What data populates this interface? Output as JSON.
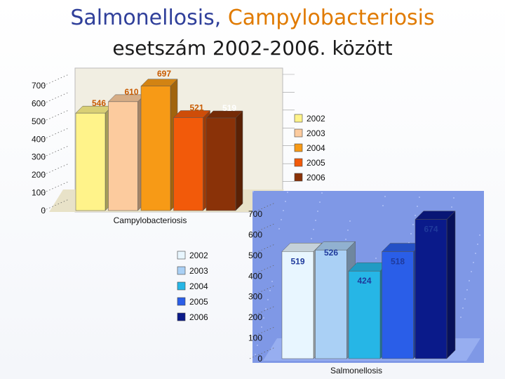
{
  "header": {
    "title_part1": "Salmonellosis",
    "title_sep": ", ",
    "title_part2": "Campylobacteriosis",
    "subtitle": "esetszám 2002-2006. között"
  },
  "colors": {
    "title_blue": "#2f3f9a",
    "title_orange": "#e07a00",
    "label_orange": "#c85a00",
    "label_blue": "#1f3a9c"
  },
  "chart_data": [
    {
      "type": "bar",
      "xlabel": "Campylobacteriosis",
      "categories": [
        "2002",
        "2003",
        "2004",
        "2005",
        "2006"
      ],
      "values": [
        546,
        610,
        697,
        521,
        519
      ],
      "ylim": [
        0,
        700
      ],
      "yticks": [
        0,
        100,
        200,
        300,
        400,
        500,
        600,
        700
      ],
      "grid": true,
      "legend": "right",
      "colors": [
        "#fff38a",
        "#fccb9e",
        "#f79a16",
        "#f25a0a",
        "#8a3208"
      ]
    },
    {
      "type": "bar",
      "xlabel": "Salmonellosis",
      "categories": [
        "2002",
        "2003",
        "2004",
        "2005",
        "2006"
      ],
      "values": [
        519,
        526,
        424,
        518,
        674
      ],
      "ylim": [
        0,
        700
      ],
      "yticks": [
        0,
        100,
        200,
        300,
        400,
        500,
        600,
        700
      ],
      "grid": false,
      "legend": "left",
      "colors": [
        "#e8f6ff",
        "#aad0f5",
        "#26b6e6",
        "#2a5ee8",
        "#0a1a8a"
      ]
    }
  ]
}
